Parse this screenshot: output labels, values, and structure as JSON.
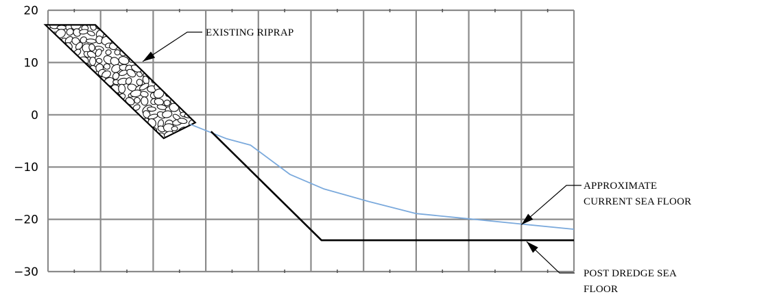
{
  "chart_data": {
    "type": "line",
    "title": "",
    "xlabel": "",
    "ylabel": "",
    "x_columns": 10,
    "ylim": [
      -30,
      20
    ],
    "y_ticks": [
      20,
      10,
      0,
      -10,
      -20,
      -30
    ],
    "y_tick_labels": [
      "20",
      "10",
      "0",
      "−10",
      "−20",
      "−30"
    ],
    "grid": true,
    "series": [
      {
        "key": "current",
        "color": "#7aa9dc",
        "points": [
          [
            2.7,
            -1.8
          ],
          [
            3.4,
            -4.6
          ],
          [
            3.85,
            -5.8
          ],
          [
            4.6,
            -11.4
          ],
          [
            5.25,
            -14.2
          ],
          [
            6.1,
            -16.6
          ],
          [
            7.0,
            -18.9
          ],
          [
            8.0,
            -19.9
          ],
          [
            9.0,
            -20.9
          ],
          [
            10.0,
            -21.9
          ]
        ]
      },
      {
        "key": "dredge",
        "color": "#000000",
        "points": [
          [
            3.1,
            -3.2
          ],
          [
            5.2,
            -24.0
          ],
          [
            10.0,
            -24.0
          ]
        ]
      }
    ],
    "riprap": {
      "polygon": [
        [
          -0.05,
          17.2
        ],
        [
          0.9,
          17.2
        ],
        [
          2.8,
          -1.5
        ],
        [
          2.2,
          -4.5
        ]
      ]
    },
    "annotations": [
      {
        "key": "riprap",
        "lines": [
          "EXISTING RIPRAP"
        ]
      },
      {
        "key": "current",
        "lines": [
          "APPROXIMATE",
          "CURRENT SEA FLOOR"
        ]
      },
      {
        "key": "dredge",
        "lines": [
          "POST DREDGE SEA",
          "FLOOR"
        ]
      }
    ]
  }
}
